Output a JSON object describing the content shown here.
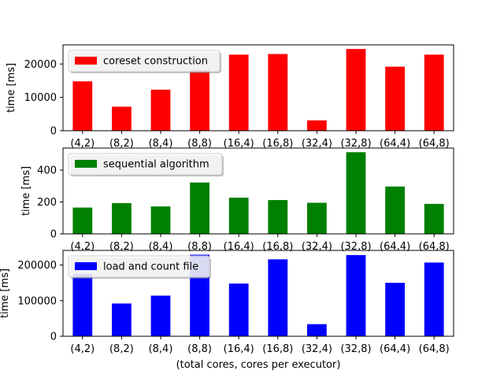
{
  "chart_data": [
    {
      "type": "bar",
      "categories": [
        "(4,2)",
        "(8,2)",
        "(8,4)",
        "(8,8)",
        "(16,4)",
        "(16,8)",
        "(32,4)",
        "(32,8)",
        "(64,4)",
        "(64,8)"
      ],
      "series": [
        {
          "name": "coreset construction",
          "color": "#ff0000",
          "values": [
            14800,
            7200,
            12300,
            18200,
            22800,
            23000,
            3100,
            24500,
            19200,
            22800
          ]
        }
      ],
      "xlabel": "",
      "ylabel": "time [ms]",
      "ylim": [
        0,
        25725
      ],
      "yticks": [
        0,
        10000,
        20000
      ],
      "legend": "top-left",
      "grid": false
    },
    {
      "type": "bar",
      "categories": [
        "(4,2)",
        "(8,2)",
        "(8,4)",
        "(8,8)",
        "(16,4)",
        "(16,8)",
        "(32,4)",
        "(32,8)",
        "(64,4)",
        "(64,8)"
      ],
      "series": [
        {
          "name": "sequential algorithm",
          "color": "#008000",
          "values": [
            165,
            193,
            172,
            322,
            227,
            212,
            195,
            512,
            297,
            188
          ]
        }
      ],
      "xlabel": "",
      "ylabel": "time [ms]",
      "ylim": [
        0,
        538
      ],
      "yticks": [
        0,
        200,
        400
      ],
      "legend": "top-left",
      "grid": false
    },
    {
      "type": "bar",
      "categories": [
        "(4,2)",
        "(8,2)",
        "(8,4)",
        "(8,8)",
        "(16,4)",
        "(16,8)",
        "(32,4)",
        "(32,8)",
        "(64,4)",
        "(64,8)"
      ],
      "series": [
        {
          "name": "load and count file",
          "color": "#0000ff",
          "values": [
            175000,
            92000,
            114000,
            229000,
            148000,
            216000,
            34000,
            228000,
            150000,
            207000
          ]
        }
      ],
      "xlabel": "(total cores, cores per executor)",
      "ylabel": "time [ms]",
      "ylim": [
        0,
        241000
      ],
      "yticks": [
        0,
        100000,
        200000
      ],
      "legend": "top-left",
      "grid": false
    }
  ]
}
